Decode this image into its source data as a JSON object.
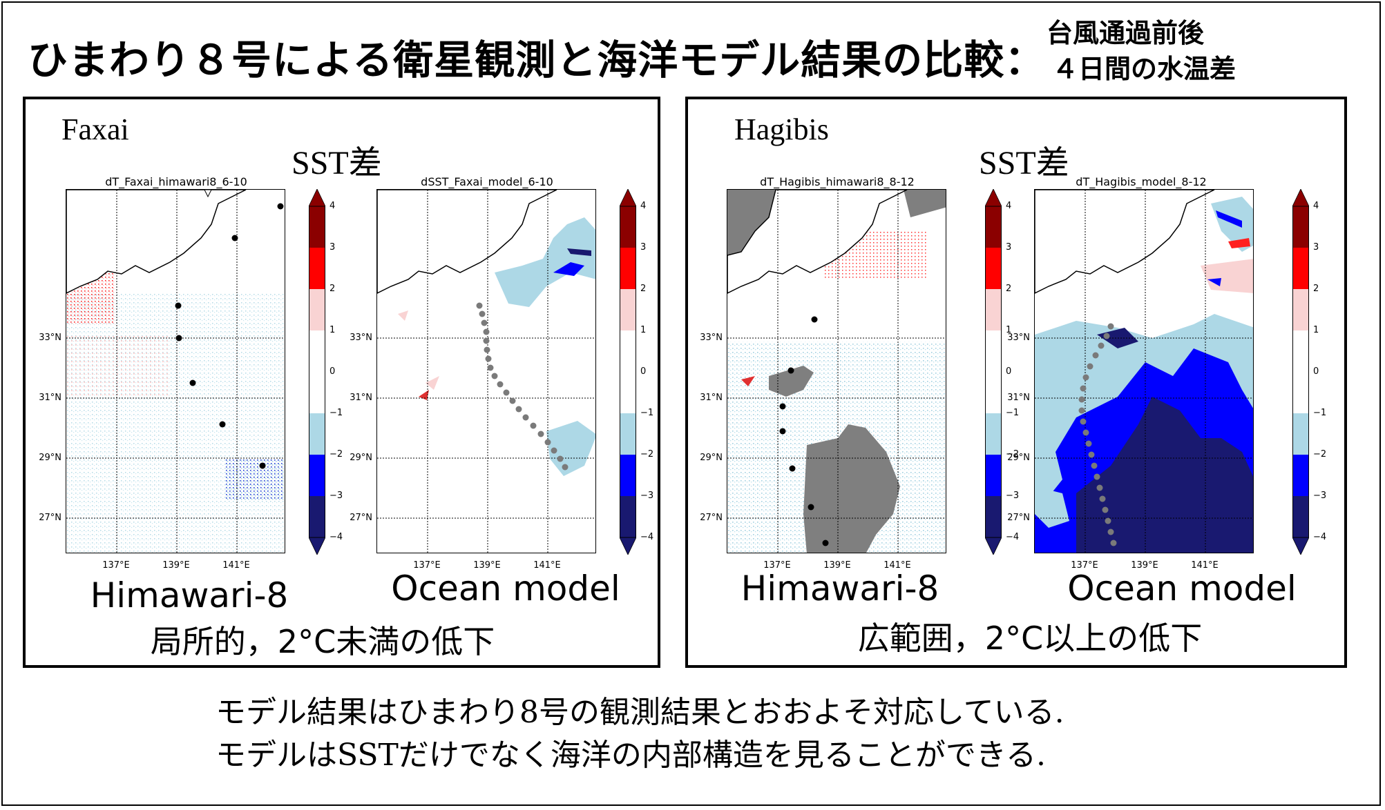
{
  "title": "ひまわり８号による衛星観測と海洋モデル結果の比較：",
  "subtitle": [
    "台風通過前後",
    "４日間の水温差"
  ],
  "panels": [
    {
      "storm": "Faxai",
      "heading": "SST差",
      "finding": "局所的，2°C未満の低下",
      "maps": [
        {
          "plot_title": "dT_Faxai_himawari8_6-10",
          "label": "Himawari-8"
        },
        {
          "plot_title": "dSST_Faxai_model_6-10",
          "label": "Ocean model"
        }
      ]
    },
    {
      "storm": "Hagibis",
      "heading": "SST差",
      "finding": "広範囲，2°C以上の低下",
      "maps": [
        {
          "plot_title": "dT_Hagibis_himawari8_8-12",
          "label": "Himawari-8"
        },
        {
          "plot_title": "dT_Hagibis_model_8-12",
          "label": "Ocean model"
        }
      ]
    }
  ],
  "lat_ticks": [
    "33°N",
    "31°N",
    "29°N",
    "27°N"
  ],
  "lon_ticks": [
    "137°E",
    "139°E",
    "141°E"
  ],
  "colorbar_ticks": [
    "4",
    "3",
    "2",
    "1",
    "0",
    "−1",
    "−2",
    "−3",
    "−4"
  ],
  "colorbar_colors": [
    "#8b0000",
    "#ff0000",
    "#f9d3d3",
    "#ffffff",
    "#ffffff",
    "#add8e6",
    "#0000ff",
    "#191970"
  ],
  "conclusion": [
    "モデル結果はひまわり8号の観測結果とおおよそ対応している.",
    "モデルはSSTだけでなく海洋の内部構造を見ることができる."
  ]
}
